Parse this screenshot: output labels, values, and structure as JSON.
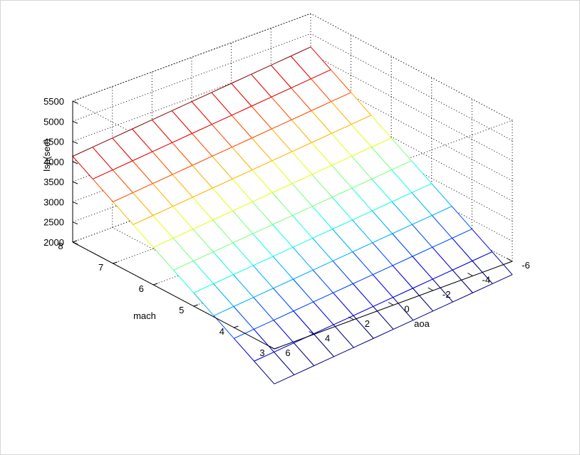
{
  "chart_data": {
    "type": "surface",
    "surface_style": "mesh",
    "colormap": "jet",
    "zlabel": "Isp(sec)",
    "xlabel": "aoa",
    "ylabel": "mach",
    "aoa_range": [
      -6,
      6
    ],
    "mach_range": [
      3,
      8
    ],
    "isp_range": [
      2000,
      5500
    ],
    "aoa_ticks": [
      "-6",
      "-4",
      "-2",
      "0",
      "2",
      "4",
      "6"
    ],
    "mach_ticks": [
      "3",
      "4",
      "5",
      "6",
      "7",
      "8"
    ],
    "isp_ticks": [
      "2000",
      "2500",
      "3000",
      "3500",
      "4000",
      "4500",
      "5000",
      "5500"
    ],
    "grid": true,
    "box": true,
    "aoa_values": [
      -6,
      -5,
      -4,
      -3,
      -2,
      -1,
      0,
      1,
      2,
      3,
      4,
      5,
      6
    ],
    "mach_values": [
      3,
      3.5,
      4,
      4.5,
      5,
      5.5,
      6,
      6.5,
      7,
      7.5,
      8
    ],
    "isp_at_mach": [
      1400,
      1700,
      2000,
      2300,
      2600,
      2900,
      3200,
      3500,
      3800,
      4100,
      4400
    ],
    "isp_aoa_slope": 45,
    "color_limits": [
      1400,
      4400
    ]
  }
}
